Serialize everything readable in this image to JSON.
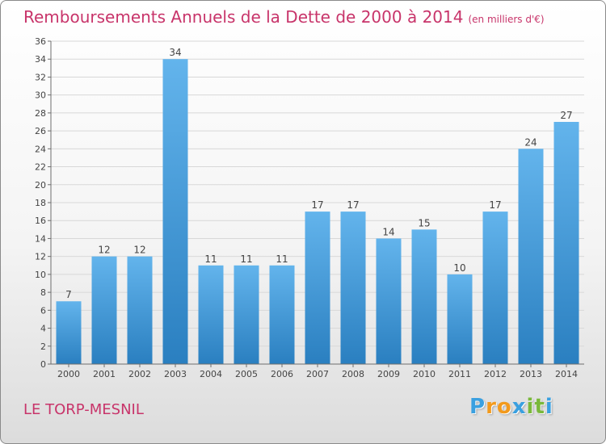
{
  "title": "Remboursements Annuels de la Dette de 2000 à 2014",
  "unit_note": "(en milliers d'€)",
  "commune": "LE TORP-MESNIL",
  "logo": {
    "letters": [
      "P",
      "r",
      "o",
      "x",
      "i",
      "t",
      "i"
    ],
    "colors": [
      "#3aa0e0",
      "#f29a1d",
      "#f29a1d",
      "#3aa0e0",
      "#7ab83b",
      "#7ab83b",
      "#3aa0e0"
    ]
  },
  "colors": {
    "title": "#c8346a",
    "bar_light": "#63b4ec",
    "bar_dark": "#2a7fc0",
    "grid": "#d8d8d8",
    "axis": "#6e6e6e"
  },
  "chart_data": {
    "type": "bar",
    "categories": [
      "2000",
      "2001",
      "2002",
      "2003",
      "2004",
      "2005",
      "2006",
      "2007",
      "2008",
      "2009",
      "2010",
      "2011",
      "2012",
      "2013",
      "2014"
    ],
    "values": [
      7,
      12,
      12,
      34,
      11,
      11,
      11,
      17,
      17,
      14,
      15,
      10,
      17,
      24,
      27
    ],
    "data_labels": [
      "7",
      "12",
      "12",
      "34",
      "11",
      "11",
      "11",
      "17",
      "17",
      "14",
      "15",
      "10",
      "17",
      "24",
      "27"
    ],
    "ylim": [
      0,
      36
    ],
    "yticks": [
      0,
      2,
      4,
      6,
      8,
      10,
      12,
      14,
      16,
      18,
      20,
      22,
      24,
      26,
      28,
      30,
      32,
      34,
      36
    ],
    "grid": true,
    "xlabel": "",
    "ylabel": ""
  }
}
